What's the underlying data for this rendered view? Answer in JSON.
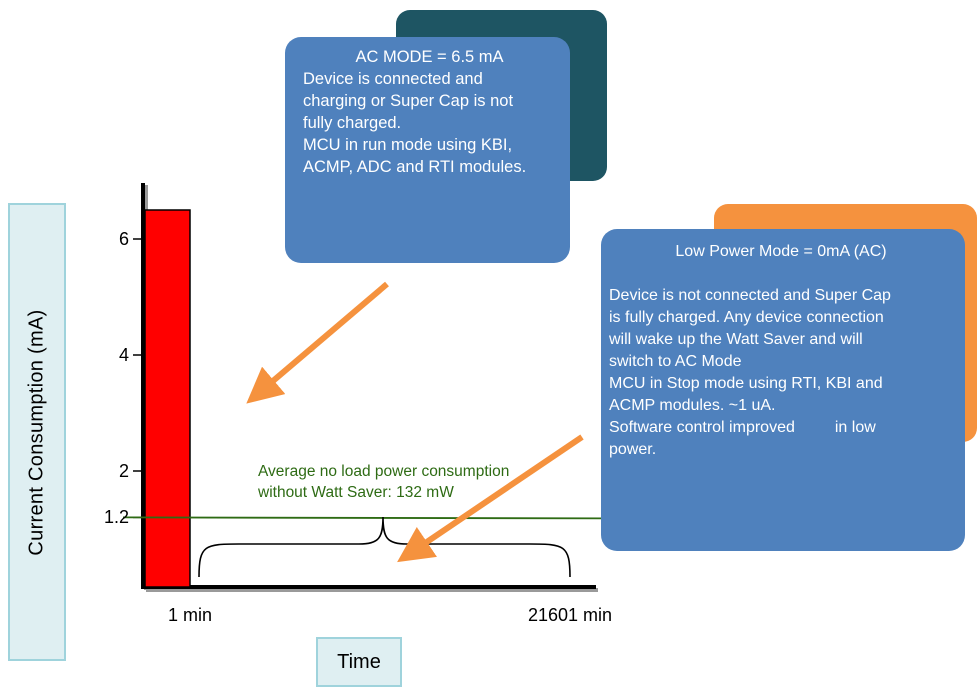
{
  "chart_data": {
    "type": "bar",
    "xlabel": "Time",
    "ylabel": "Current Consumption (mA)",
    "ylim": [
      0,
      7
    ],
    "yticks": [
      {
        "value": 6,
        "label": "6"
      },
      {
        "value": 4,
        "label": "4"
      },
      {
        "value": 2,
        "label": "2"
      },
      {
        "value": 1.2,
        "label": "1.2"
      }
    ],
    "xticks": [
      "1 min",
      "21601 min"
    ],
    "bars": [
      {
        "x": "1 min",
        "value": 6.5,
        "color": "#ff0000"
      }
    ],
    "reference_line": {
      "value": 1.2,
      "color": "#2e6b14",
      "label": [
        "Average no load power consumption",
        "without Watt Saver: 132 mW"
      ]
    },
    "annotations": [
      {
        "name": "ac-mode",
        "lines": [
          "AC MODE = 6.5 mA",
          "Device is connected and",
          "charging or Super Cap is not",
          "fully charged.",
          "MCU in run mode using KBI,",
          "ACMP, ADC and RTI modules."
        ],
        "fill": "#4f81bd",
        "shadow": "#1e5563"
      },
      {
        "name": "low-power-mode",
        "title": "Low Power Mode = 0mA (AC)",
        "lines": [
          "Device is not connected and Super Cap",
          "is fully charged. Any device connection",
          "will wake up the Watt Saver and will",
          "switch to AC Mode",
          "MCU in Stop  mode using RTI, KBI and",
          "ACMP modules. ~1 uA.",
          "Software control improved         in low",
          "power."
        ],
        "fill": "#4f81bd",
        "shadow": "#f5923e"
      }
    ],
    "arrow_color": "#f5923e"
  }
}
